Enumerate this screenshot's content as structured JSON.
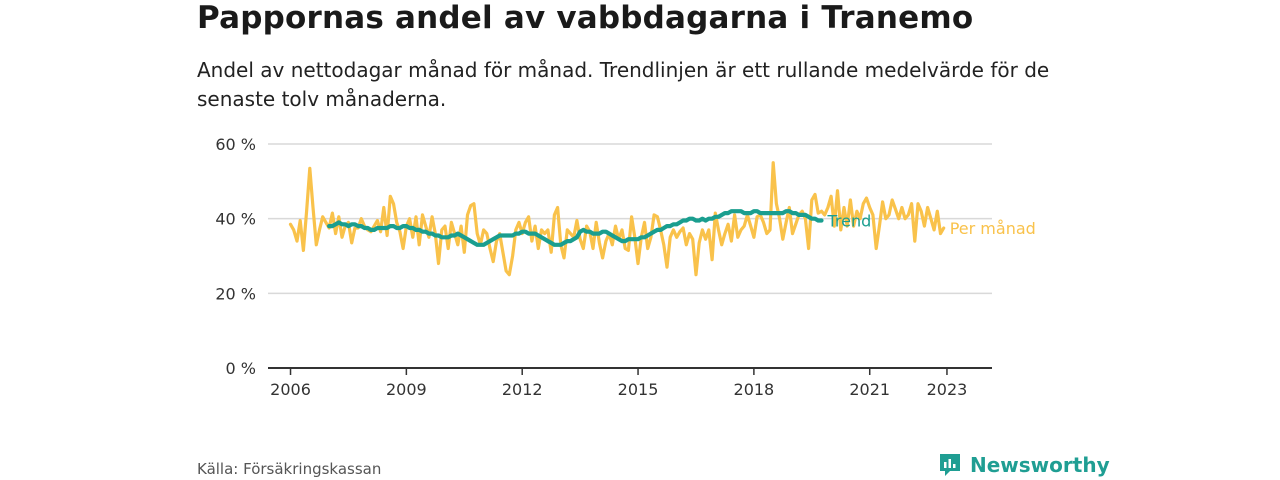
{
  "header": {
    "title": "Pappornas andel av vabbdagarna i Tranemo",
    "subtitle": "Andel av nettodagar månad för månad. Trendlinjen är ett rullande medelvärde för de senaste tolv månaderna."
  },
  "footer": {
    "source": "Källa: Försäkringskassan",
    "brand": "Newsworthy"
  },
  "colors": {
    "trend": "#1a9e8f",
    "monthly": "#f9c24b",
    "grid": "#d9d9d9",
    "axis": "#333333",
    "brand": "#1f9e93"
  },
  "chart_data": {
    "type": "line",
    "title": "Pappornas andel av vabbdagarna i Tranemo",
    "xlabel": "",
    "ylabel": "",
    "ylim": [
      0,
      60
    ],
    "xlim": [
      "2005-06",
      "2024-03"
    ],
    "y_ticks": [
      {
        "value": 0,
        "label": "0 %"
      },
      {
        "value": 20,
        "label": "20 %"
      },
      {
        "value": 40,
        "label": "40 %"
      },
      {
        "value": 60,
        "label": "60 %"
      }
    ],
    "x_ticks": [
      {
        "value": "2006-01",
        "label": "2006"
      },
      {
        "value": "2009-01",
        "label": "2009"
      },
      {
        "value": "2012-01",
        "label": "2012"
      },
      {
        "value": "2015-01",
        "label": "2015"
      },
      {
        "value": "2018-01",
        "label": "2018"
      },
      {
        "value": "2021-01",
        "label": "2021"
      },
      {
        "value": "2023-01",
        "label": "2023"
      }
    ],
    "grid": true,
    "series": [
      {
        "name": "Per månad",
        "start": "2006-01",
        "values": [
          38.5,
          37,
          34,
          39.5,
          31.5,
          42,
          53.5,
          43,
          33,
          37,
          40.5,
          39,
          37.5,
          41.5,
          36,
          40.5,
          35,
          38,
          39,
          33.5,
          37.5,
          37.5,
          40,
          38,
          37,
          36.5,
          38,
          39.5,
          36.5,
          43,
          35.5,
          46,
          44,
          39,
          36.5,
          32,
          38,
          40,
          35,
          40.5,
          33,
          41,
          38,
          35,
          40.5,
          36,
          28,
          37,
          38,
          32,
          39,
          36,
          33,
          38,
          31,
          41,
          43.5,
          44,
          36,
          33,
          37,
          36,
          32,
          28.5,
          34,
          36,
          31,
          26,
          25,
          30,
          37,
          39,
          36,
          39,
          40.5,
          34,
          38,
          32,
          37,
          36,
          37,
          31,
          41,
          43,
          33,
          29.5,
          37,
          36,
          35,
          39.5,
          34.5,
          32,
          38,
          36.5,
          32,
          39,
          33.5,
          29.5,
          34,
          36,
          33,
          38,
          34.5,
          37,
          32,
          31.5,
          40.5,
          35,
          28,
          35,
          39,
          32,
          35,
          41,
          40.5,
          37,
          33,
          27,
          35,
          37,
          35,
          36.5,
          37.5,
          33,
          36,
          34.5,
          25,
          33.5,
          37,
          34.5,
          37,
          29,
          41.5,
          37,
          33,
          36,
          38.5,
          34,
          41,
          35,
          37,
          38,
          41,
          38,
          35,
          40.5,
          41,
          39,
          36,
          37,
          55,
          44,
          40,
          34.5,
          39,
          43,
          36,
          38.5,
          41,
          42,
          40,
          32,
          45,
          46.5,
          41.5,
          42,
          41,
          43,
          46,
          38,
          47.5,
          37,
          43,
          38,
          45,
          38,
          42,
          40,
          44,
          45.5,
          43,
          41,
          32,
          38,
          44.5,
          40,
          41,
          45,
          42.5,
          40,
          43,
          40,
          41,
          44,
          34,
          44,
          42,
          38,
          43,
          40,
          37,
          42,
          36,
          37.5
        ]
      },
      {
        "name": "Trend",
        "start": "2007-01",
        "values": [
          38,
          38,
          38.5,
          39,
          38.5,
          38.5,
          38,
          38.5,
          38.5,
          38,
          38,
          37.5,
          37.5,
          37,
          37,
          37.5,
          37.5,
          37.5,
          37.5,
          38,
          38,
          37.5,
          37.5,
          38,
          38,
          37.5,
          37.5,
          37,
          37,
          36.5,
          36.5,
          36,
          36,
          35.5,
          35.5,
          35,
          35,
          35,
          35.5,
          35.5,
          36,
          35.5,
          35,
          34.5,
          34,
          33.5,
          33,
          33,
          33,
          33.5,
          34,
          34.5,
          35,
          35.5,
          35.5,
          35.5,
          35.5,
          35.5,
          36,
          36,
          36.5,
          36.5,
          36,
          36,
          36,
          35.5,
          35,
          34.5,
          34,
          33.5,
          33,
          33,
          33,
          33.5,
          34,
          34,
          34.5,
          35,
          36.5,
          37,
          36.5,
          36.5,
          36,
          36,
          36,
          36.5,
          36.5,
          36,
          35.5,
          35,
          34.5,
          34,
          34,
          34.5,
          34.5,
          34.5,
          34.5,
          35,
          35,
          35.5,
          36,
          36.5,
          37,
          37,
          37.5,
          38,
          38,
          38.5,
          38.5,
          39,
          39.5,
          39.5,
          40,
          40,
          39.5,
          39.5,
          40,
          39.5,
          40,
          40,
          40.5,
          40.5,
          41,
          41.5,
          41.5,
          42,
          42,
          42,
          42,
          41.5,
          41.5,
          41.5,
          42,
          42,
          41.5,
          41.5,
          41.5,
          41.5,
          41.5,
          41.5,
          41.5,
          41.5,
          42,
          42,
          41.5,
          41.5,
          41,
          41,
          41,
          40.5,
          40,
          40,
          39.5,
          39.5
        ]
      }
    ],
    "end_labels": {
      "trend": "Trend",
      "monthly": "Per månad"
    }
  }
}
